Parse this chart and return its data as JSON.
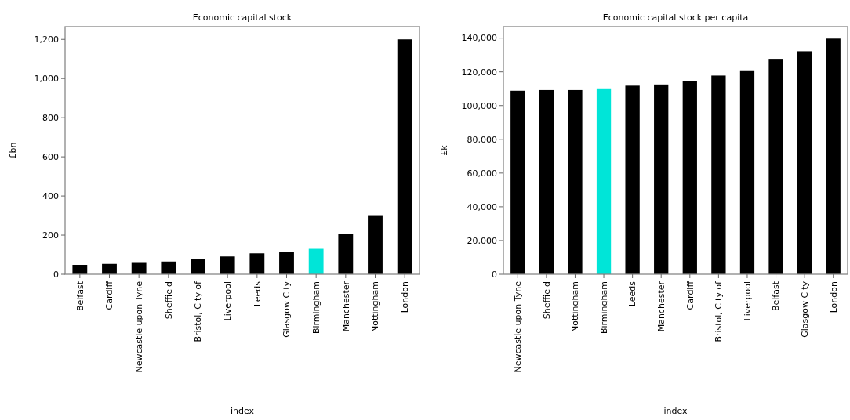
{
  "chart_data": [
    {
      "type": "bar",
      "title": "Economic capital stock",
      "xlabel": "index",
      "ylabel": "£bn",
      "categories": [
        "Belfast",
        "Cardiff",
        "Newcastle upon Tyne",
        "Sheffield",
        "Bristol, City of",
        "Liverpool",
        "Leeds",
        "Glasgow City",
        "Birmingham",
        "Manchester",
        "Nottingham",
        "London"
      ],
      "values": [
        48,
        53,
        58,
        65,
        76,
        91,
        107,
        115,
        130,
        206,
        298,
        1200
      ],
      "colors": [
        "#000000",
        "#000000",
        "#000000",
        "#000000",
        "#000000",
        "#000000",
        "#000000",
        "#000000",
        "#00e5d8",
        "#000000",
        "#000000",
        "#000000"
      ],
      "ylim": [
        0,
        1265
      ],
      "yticks": [
        0,
        {
          "value": 200,
          "label": "200"
        },
        {
          "value": 400,
          "label": "400"
        },
        {
          "value": 600,
          "label": "600"
        },
        {
          "value": 800,
          "label": "800"
        },
        {
          "value": 1000,
          "label": "1,000"
        },
        {
          "value": 1200,
          "label": "1,200"
        }
      ],
      "grid": false
    },
    {
      "type": "bar",
      "title": "Economic capital stock per capita",
      "xlabel": "index",
      "ylabel": "£k",
      "categories": [
        "Newcastle upon Tyne",
        "Sheffield",
        "Nottingham",
        "Birmingham",
        "Leeds",
        "Manchester",
        "Cardiff",
        "Bristol, City of",
        "Liverpool",
        "Belfast",
        "Glasgow City",
        "London"
      ],
      "values": [
        108800,
        109200,
        109200,
        110200,
        111800,
        112500,
        114600,
        117800,
        120900,
        127700,
        132200,
        139700
      ],
      "colors": [
        "#000000",
        "#000000",
        "#000000",
        "#00e5d8",
        "#000000",
        "#000000",
        "#000000",
        "#000000",
        "#000000",
        "#000000",
        "#000000",
        "#000000"
      ],
      "ylim": [
        0,
        146800
      ],
      "yticks": [
        0,
        {
          "value": 20000,
          "label": "20,000"
        },
        {
          "value": 40000,
          "label": "40,000"
        },
        {
          "value": 60000,
          "label": "60,000"
        },
        {
          "value": 80000,
          "label": "80,000"
        },
        {
          "value": 100000,
          "label": "100,000"
        },
        {
          "value": 120000,
          "label": "120,000"
        },
        {
          "value": 140000,
          "label": "140,000"
        }
      ],
      "grid": false
    }
  ]
}
